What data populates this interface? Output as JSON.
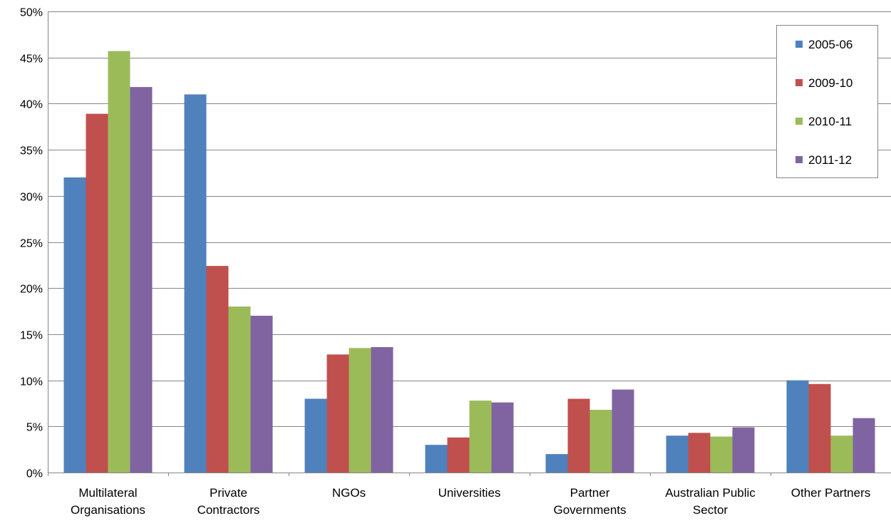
{
  "chart_data": {
    "type": "bar",
    "title": "",
    "xlabel": "",
    "ylabel": "",
    "ylim": [
      0,
      50
    ],
    "y_tick_step": 5,
    "y_tick_suffix": "%",
    "grid": true,
    "legend_position": "top-right",
    "categories": [
      [
        "Multilateral",
        "Organisations"
      ],
      [
        "Private",
        "Contractors"
      ],
      [
        "NGOs"
      ],
      [
        "Universities"
      ],
      [
        "Partner",
        "Governments"
      ],
      [
        "Australian Public",
        "Sector"
      ],
      [
        "Other Partners"
      ]
    ],
    "series": [
      {
        "name": "2005-06",
        "color": "#4F81BD",
        "values": [
          32.0,
          41.0,
          8.0,
          3.0,
          2.0,
          4.0,
          10.0
        ]
      },
      {
        "name": "2009-10",
        "color": "#C0504D",
        "values": [
          38.9,
          22.4,
          12.8,
          3.8,
          8.0,
          4.3,
          9.6
        ]
      },
      {
        "name": "2010-11",
        "color": "#9BBB59",
        "values": [
          45.7,
          18.0,
          13.5,
          7.8,
          6.8,
          3.9,
          4.0
        ]
      },
      {
        "name": "2011-12",
        "color": "#8064A2",
        "values": [
          41.8,
          17.0,
          13.6,
          7.6,
          9.0,
          4.9,
          5.9
        ]
      }
    ]
  }
}
